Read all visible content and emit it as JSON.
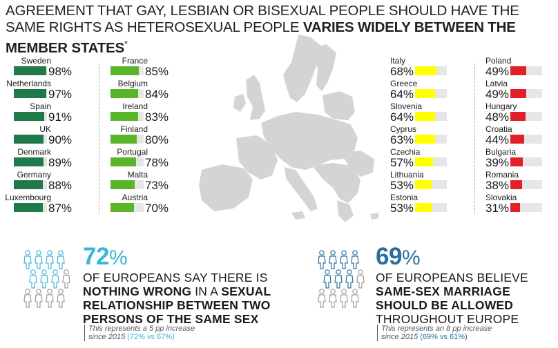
{
  "title": {
    "part1": "AGREEMENT THAT GAY, LESBIAN OR BISEXUAL PEOPLE SHOULD HAVE THE SAME RIGHTS AS HETEROSEXUAL PEOPLE ",
    "part2": "VARIES WIDELY BETWEEN THE MEMBER STATES",
    "asterisk": "*"
  },
  "colors": {
    "dark_green": "#1f7a4a",
    "light_green": "#5ab52a",
    "yellow": "#ffff00",
    "red": "#e3202a",
    "track": "#e6e6e6",
    "map": "#d4d4d4",
    "stat1": "#3bb6d8",
    "stat2": "#2a6fa0"
  },
  "chart_data": {
    "type": "bar",
    "title": "AGREEMENT THAT GAY, LESBIAN OR BISEXUAL PEOPLE SHOULD HAVE THE SAME RIGHTS AS HETEROSEXUAL PEOPLE VARIES WIDELY BETWEEN THE MEMBER STATES*",
    "categories": [
      "Sweden",
      "Netherlands",
      "Spain",
      "UK",
      "Denmark",
      "Germany",
      "Luxembourg",
      "France",
      "Belgium",
      "Ireland",
      "Finland",
      "Portugal",
      "Malta",
      "Austria",
      "Italy",
      "Greece",
      "Slovenia",
      "Cyprus",
      "Czechia",
      "Lithuania",
      "Estonia",
      "Poland",
      "Latvia",
      "Hungary",
      "Croatia",
      "Bulgaria",
      "Romania",
      "Slovakia"
    ],
    "values": [
      98,
      97,
      91,
      90,
      89,
      88,
      87,
      85,
      84,
      83,
      80,
      78,
      73,
      70,
      68,
      64,
      64,
      63,
      57,
      53,
      53,
      49,
      49,
      48,
      44,
      39,
      38,
      31
    ],
    "unit": "%",
    "ylim": [
      0,
      100
    ],
    "columns": [
      {
        "color": "#1f7a4a",
        "items": [
          {
            "name": "Sweden",
            "value": 98,
            "label": "98%"
          },
          {
            "name": "Netherlands",
            "value": 97,
            "label": "97%"
          },
          {
            "name": "Spain",
            "value": 91,
            "label": "91%"
          },
          {
            "name": "UK",
            "value": 90,
            "label": "90%"
          },
          {
            "name": "Denmark",
            "value": 89,
            "label": "89%"
          },
          {
            "name": "Germany",
            "value": 88,
            "label": "88%"
          },
          {
            "name": "Luxembourg",
            "value": 87,
            "label": "87%"
          }
        ]
      },
      {
        "color": "#5ab52a",
        "items": [
          {
            "name": "France",
            "value": 85,
            "label": "85%"
          },
          {
            "name": "Belgium",
            "value": 84,
            "label": "84%"
          },
          {
            "name": "Ireland",
            "value": 83,
            "label": "83%"
          },
          {
            "name": "Finland",
            "value": 80,
            "label": "80%"
          },
          {
            "name": "Portugal",
            "value": 78,
            "label": "78%"
          },
          {
            "name": "Malta",
            "value": 73,
            "label": "73%"
          },
          {
            "name": "Austria",
            "value": 70,
            "label": "70%"
          }
        ]
      },
      {
        "color": "#ffff00",
        "items": [
          {
            "name": "Italy",
            "value": 68,
            "label": "68%"
          },
          {
            "name": "Greece",
            "value": 64,
            "label": "64%"
          },
          {
            "name": "Slovenia",
            "value": 64,
            "label": "64%"
          },
          {
            "name": "Cyprus",
            "value": 63,
            "label": "63%"
          },
          {
            "name": "Czechia",
            "value": 57,
            "label": "57%"
          },
          {
            "name": "Lithuania",
            "value": 53,
            "label": "53%"
          },
          {
            "name": "Estonia",
            "value": 53,
            "label": "53%"
          }
        ]
      },
      {
        "color": "#e3202a",
        "items": [
          {
            "name": "Poland",
            "value": 49,
            "label": "49%"
          },
          {
            "name": "Latvia",
            "value": 49,
            "label": "49%"
          },
          {
            "name": "Hungary",
            "value": 48,
            "label": "48%"
          },
          {
            "name": "Croatia",
            "value": 44,
            "label": "44%"
          },
          {
            "name": "Bulgaria",
            "value": 39,
            "label": "39%"
          },
          {
            "name": "Romania",
            "value": 38,
            "label": "38%"
          },
          {
            "name": "Slovakia",
            "value": 31,
            "label": "31%"
          }
        ]
      }
    ]
  },
  "stat1": {
    "value": "72",
    "symbol": "%",
    "line1": "OF EUROPEANS SAY THERE IS",
    "line2_bold": "NOTHING WRONG",
    "line2_rest": " IN A ",
    "line2_bold2": "SEXUAL",
    "line3": "RELATIONSHIP BETWEEN TWO",
    "line4": "PERSONS OF THE SAME SEX",
    "note1": "This represents a 5 pp increase",
    "note2": "since 2015 ",
    "note_hl": "(72% vs 67%)",
    "people_highlighted": 7,
    "people_total": 10
  },
  "stat2": {
    "value": "69",
    "symbol": "%",
    "line1": "OF EUROPEANS BELIEVE",
    "line2": "SAME-SEX MARRIAGE",
    "line3": "SHOULD BE ALLOWED",
    "line4": "THROUGHOUT EUROPE",
    "note1": "This represents an 8 pp increase",
    "note2": "since 2015 ",
    "note_hl": "(69% vs 61%)",
    "people_highlighted": 7,
    "people_total": 10
  }
}
